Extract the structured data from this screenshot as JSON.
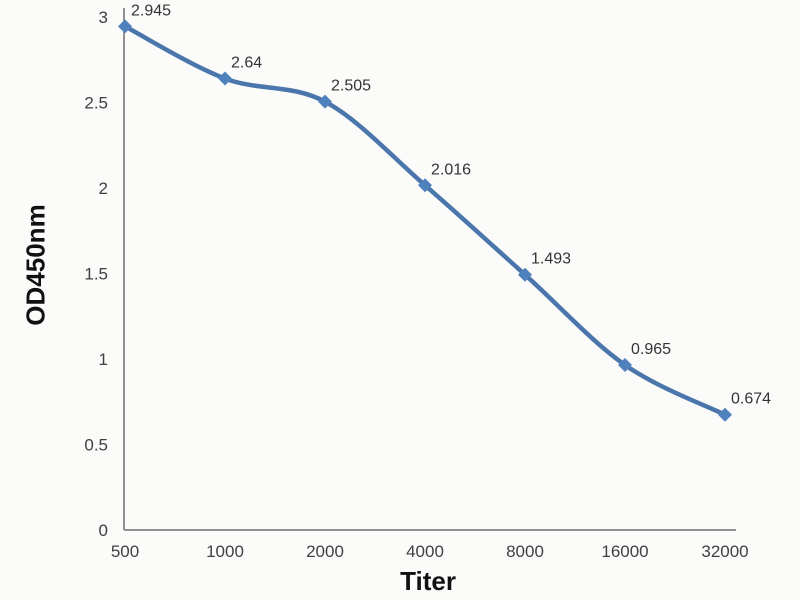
{
  "chart_data": {
    "type": "line",
    "title": "",
    "xlabel": "Titer",
    "ylabel": "OD450nm",
    "categories": [
      "500",
      "1000",
      "2000",
      "4000",
      "8000",
      "16000",
      "32000"
    ],
    "series": [
      {
        "name": "OD450nm",
        "values": [
          2.945,
          2.64,
          2.505,
          2.016,
          1.493,
          0.965,
          0.674
        ]
      }
    ],
    "data_labels": [
      "2.945",
      "2.64",
      "2.505",
      "2.016",
      "1.493",
      "0.965",
      "0.674"
    ],
    "y_ticks": [
      0,
      0.5,
      1,
      1.5,
      2,
      2.5,
      3
    ],
    "y_tick_labels": [
      "0",
      "0.5",
      "1",
      "1.5",
      "2",
      "2.5",
      "3"
    ],
    "ylim": [
      0,
      3
    ],
    "grid": false,
    "legend_position": "none",
    "marker_shape": "diamond",
    "colors": {
      "line": "#4a76ac",
      "marker": "#4f81bd",
      "axis": "#909090",
      "tick_label": "#3f3f3f",
      "data_label": "#333333",
      "axis_title": "#111111",
      "background": "#fbfbfa"
    }
  }
}
